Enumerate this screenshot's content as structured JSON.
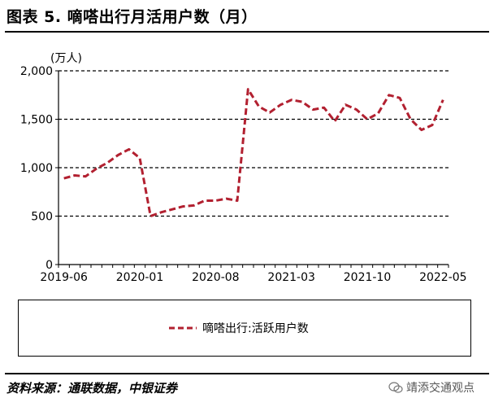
{
  "header": {
    "title": "图表 5. 嘀嗒出行月活用户数（月）"
  },
  "footer": {
    "source": "资料来源：通联数据，中银证券",
    "watermark": "靖添交通观点"
  },
  "colors": {
    "series": "#B22030",
    "grid": "#000000",
    "axis": "#000000"
  },
  "chart_data": {
    "type": "line",
    "unit_label": "(万人)",
    "ylim": [
      0,
      2000
    ],
    "yticks": [
      0,
      500,
      1000,
      1500,
      2000
    ],
    "ytick_labels": [
      "0",
      "500",
      "1,000",
      "1,500",
      "2,000"
    ],
    "x_tick_labels": [
      "2019-06",
      "2020-01",
      "2020-08",
      "2021-03",
      "2021-10",
      "2022-05"
    ],
    "x_tick_index": [
      0,
      7,
      14,
      21,
      28,
      35
    ],
    "grid": "horizontal-dashed",
    "legend_placement": "bottom",
    "series": [
      {
        "name": "嘀嗒出行:活跃用户数",
        "values": [
          890,
          920,
          910,
          990,
          1050,
          1130,
          1190,
          1100,
          500,
          540,
          570,
          600,
          610,
          660,
          660,
          680,
          660,
          1810,
          1630,
          1570,
          1650,
          1700,
          1680,
          1600,
          1620,
          1480,
          1650,
          1600,
          1500,
          1560,
          1750,
          1720,
          1500,
          1390,
          1440,
          1700
        ]
      }
    ]
  }
}
